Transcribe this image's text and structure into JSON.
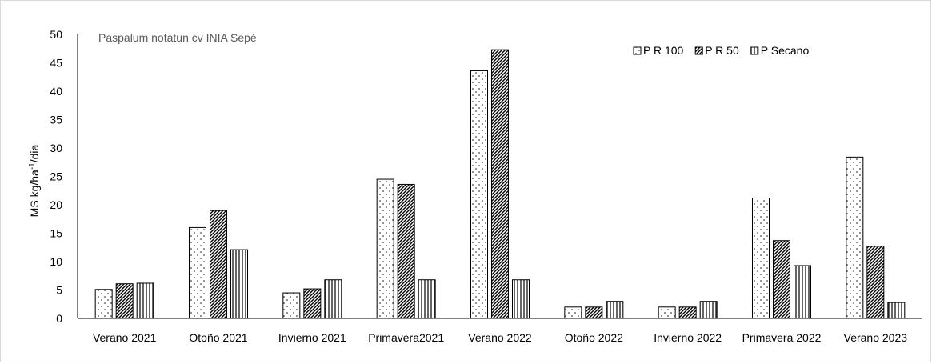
{
  "chart_data": {
    "type": "bar",
    "title": "Paspalum notatun cv INIA Sepé",
    "ylabel": "MS kg/ha",
    "ylabel_sup": "-1",
    "ylabel_suffix": "/dia",
    "xlabel": "",
    "ylim": [
      0,
      50
    ],
    "yticks": [
      0,
      5,
      10,
      15,
      20,
      25,
      30,
      35,
      40,
      45,
      50
    ],
    "grid": false,
    "legend_position": "top-right",
    "categories": [
      "Verano 2021",
      "Otoño 2021",
      "Invierno 2021",
      "Primavera2021",
      "Verano 2022",
      "Otoño 2022",
      "Invierno 2022",
      "Primavera 2022",
      "Verano 2023"
    ],
    "series": [
      {
        "name": "P R 100",
        "pattern": "dots",
        "values": [
          5.1,
          16.0,
          4.5,
          24.5,
          43.6,
          2.0,
          2.0,
          21.2,
          28.4
        ]
      },
      {
        "name": "P R 50",
        "pattern": "diagonal",
        "values": [
          6.1,
          19.0,
          5.2,
          23.6,
          47.3,
          2.0,
          2.0,
          13.7,
          12.7
        ]
      },
      {
        "name": "P  Secano",
        "pattern": "vertical",
        "values": [
          6.2,
          12.1,
          6.8,
          6.8,
          6.8,
          3.0,
          3.0,
          9.3,
          2.8
        ]
      }
    ]
  }
}
